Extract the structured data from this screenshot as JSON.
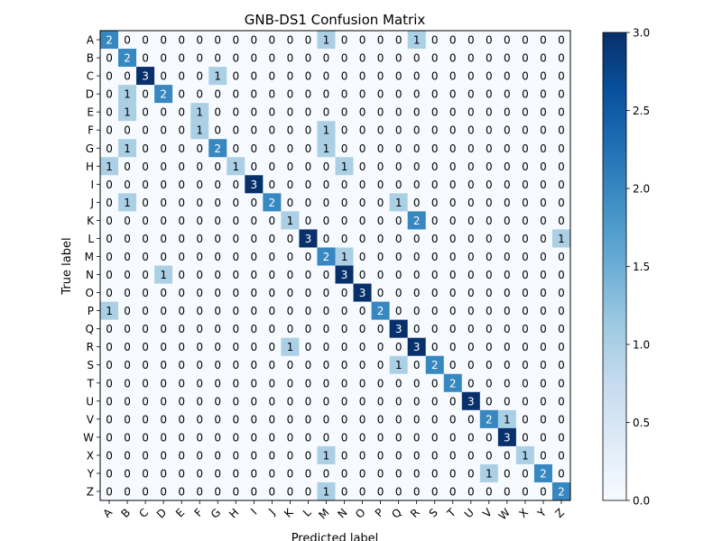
{
  "chart_data": {
    "type": "heatmap",
    "title": "GNB-DS1 Confusion Matrix",
    "xlabel": "Predicted label",
    "ylabel": "True label",
    "labels": [
      "A",
      "B",
      "C",
      "D",
      "E",
      "F",
      "G",
      "H",
      "I",
      "J",
      "K",
      "L",
      "M",
      "N",
      "O",
      "P",
      "Q",
      "R",
      "S",
      "T",
      "U",
      "V",
      "W",
      "X",
      "Y",
      "Z"
    ],
    "colorbar": {
      "min": 0.0,
      "max": 3.0,
      "ticks": [
        "0.0",
        "0.5",
        "1.0",
        "1.5",
        "2.0",
        "2.5",
        "3.0"
      ],
      "colormap": "Blues"
    },
    "matrix": [
      [
        2,
        0,
        0,
        0,
        0,
        0,
        0,
        0,
        0,
        0,
        0,
        0,
        1,
        0,
        0,
        0,
        0,
        1,
        0,
        0,
        0,
        0,
        0,
        0,
        0,
        0
      ],
      [
        0,
        2,
        0,
        0,
        0,
        0,
        0,
        0,
        0,
        0,
        0,
        0,
        0,
        0,
        0,
        0,
        0,
        0,
        0,
        0,
        0,
        0,
        0,
        0,
        0,
        0
      ],
      [
        0,
        0,
        3,
        0,
        0,
        0,
        1,
        0,
        0,
        0,
        0,
        0,
        0,
        0,
        0,
        0,
        0,
        0,
        0,
        0,
        0,
        0,
        0,
        0,
        0,
        0
      ],
      [
        0,
        1,
        0,
        2,
        0,
        0,
        0,
        0,
        0,
        0,
        0,
        0,
        0,
        0,
        0,
        0,
        0,
        0,
        0,
        0,
        0,
        0,
        0,
        0,
        0,
        0
      ],
      [
        0,
        1,
        0,
        0,
        0,
        1,
        0,
        0,
        0,
        0,
        0,
        0,
        0,
        0,
        0,
        0,
        0,
        0,
        0,
        0,
        0,
        0,
        0,
        0,
        0,
        0
      ],
      [
        0,
        0,
        0,
        0,
        0,
        1,
        0,
        0,
        0,
        0,
        0,
        0,
        1,
        0,
        0,
        0,
        0,
        0,
        0,
        0,
        0,
        0,
        0,
        0,
        0,
        0
      ],
      [
        0,
        1,
        0,
        0,
        0,
        0,
        2,
        0,
        0,
        0,
        0,
        0,
        1,
        0,
        0,
        0,
        0,
        0,
        0,
        0,
        0,
        0,
        0,
        0,
        0,
        0
      ],
      [
        1,
        0,
        0,
        0,
        0,
        0,
        0,
        1,
        0,
        0,
        0,
        0,
        0,
        1,
        0,
        0,
        0,
        0,
        0,
        0,
        0,
        0,
        0,
        0,
        0,
        0
      ],
      [
        0,
        0,
        0,
        0,
        0,
        0,
        0,
        0,
        3,
        0,
        0,
        0,
        0,
        0,
        0,
        0,
        0,
        0,
        0,
        0,
        0,
        0,
        0,
        0,
        0,
        0
      ],
      [
        0,
        1,
        0,
        0,
        0,
        0,
        0,
        0,
        0,
        2,
        0,
        0,
        0,
        0,
        0,
        0,
        1,
        0,
        0,
        0,
        0,
        0,
        0,
        0,
        0,
        0
      ],
      [
        0,
        0,
        0,
        0,
        0,
        0,
        0,
        0,
        0,
        0,
        1,
        0,
        0,
        0,
        0,
        0,
        0,
        2,
        0,
        0,
        0,
        0,
        0,
        0,
        0,
        0
      ],
      [
        0,
        0,
        0,
        0,
        0,
        0,
        0,
        0,
        0,
        0,
        0,
        3,
        0,
        0,
        0,
        0,
        0,
        0,
        0,
        0,
        0,
        0,
        0,
        0,
        0,
        1
      ],
      [
        0,
        0,
        0,
        0,
        0,
        0,
        0,
        0,
        0,
        0,
        0,
        0,
        2,
        1,
        0,
        0,
        0,
        0,
        0,
        0,
        0,
        0,
        0,
        0,
        0,
        0
      ],
      [
        0,
        0,
        0,
        1,
        0,
        0,
        0,
        0,
        0,
        0,
        0,
        0,
        0,
        3,
        0,
        0,
        0,
        0,
        0,
        0,
        0,
        0,
        0,
        0,
        0,
        0
      ],
      [
        0,
        0,
        0,
        0,
        0,
        0,
        0,
        0,
        0,
        0,
        0,
        0,
        0,
        0,
        3,
        0,
        0,
        0,
        0,
        0,
        0,
        0,
        0,
        0,
        0,
        0
      ],
      [
        1,
        0,
        0,
        0,
        0,
        0,
        0,
        0,
        0,
        0,
        0,
        0,
        0,
        0,
        0,
        2,
        0,
        0,
        0,
        0,
        0,
        0,
        0,
        0,
        0,
        0
      ],
      [
        0,
        0,
        0,
        0,
        0,
        0,
        0,
        0,
        0,
        0,
        0,
        0,
        0,
        0,
        0,
        0,
        3,
        0,
        0,
        0,
        0,
        0,
        0,
        0,
        0,
        0
      ],
      [
        0,
        0,
        0,
        0,
        0,
        0,
        0,
        0,
        0,
        0,
        1,
        0,
        0,
        0,
        0,
        0,
        0,
        3,
        0,
        0,
        0,
        0,
        0,
        0,
        0,
        0
      ],
      [
        0,
        0,
        0,
        0,
        0,
        0,
        0,
        0,
        0,
        0,
        0,
        0,
        0,
        0,
        0,
        0,
        1,
        0,
        2,
        0,
        0,
        0,
        0,
        0,
        0,
        0
      ],
      [
        0,
        0,
        0,
        0,
        0,
        0,
        0,
        0,
        0,
        0,
        0,
        0,
        0,
        0,
        0,
        0,
        0,
        0,
        0,
        2,
        0,
        0,
        0,
        0,
        0,
        0
      ],
      [
        0,
        0,
        0,
        0,
        0,
        0,
        0,
        0,
        0,
        0,
        0,
        0,
        0,
        0,
        0,
        0,
        0,
        0,
        0,
        0,
        3,
        0,
        0,
        0,
        0,
        0
      ],
      [
        0,
        0,
        0,
        0,
        0,
        0,
        0,
        0,
        0,
        0,
        0,
        0,
        0,
        0,
        0,
        0,
        0,
        0,
        0,
        0,
        0,
        2,
        1,
        0,
        0,
        0
      ],
      [
        0,
        0,
        0,
        0,
        0,
        0,
        0,
        0,
        0,
        0,
        0,
        0,
        0,
        0,
        0,
        0,
        0,
        0,
        0,
        0,
        0,
        0,
        3,
        0,
        0,
        0
      ],
      [
        0,
        0,
        0,
        0,
        0,
        0,
        0,
        0,
        0,
        0,
        0,
        0,
        1,
        0,
        0,
        0,
        0,
        0,
        0,
        0,
        0,
        0,
        0,
        1,
        0,
        0
      ],
      [
        0,
        0,
        0,
        0,
        0,
        0,
        0,
        0,
        0,
        0,
        0,
        0,
        0,
        0,
        0,
        0,
        0,
        0,
        0,
        0,
        0,
        1,
        0,
        0,
        2,
        0
      ],
      [
        0,
        0,
        0,
        0,
        0,
        0,
        0,
        0,
        0,
        0,
        0,
        0,
        1,
        0,
        0,
        0,
        0,
        0,
        0,
        0,
        0,
        0,
        0,
        0,
        0,
        2
      ]
    ]
  }
}
